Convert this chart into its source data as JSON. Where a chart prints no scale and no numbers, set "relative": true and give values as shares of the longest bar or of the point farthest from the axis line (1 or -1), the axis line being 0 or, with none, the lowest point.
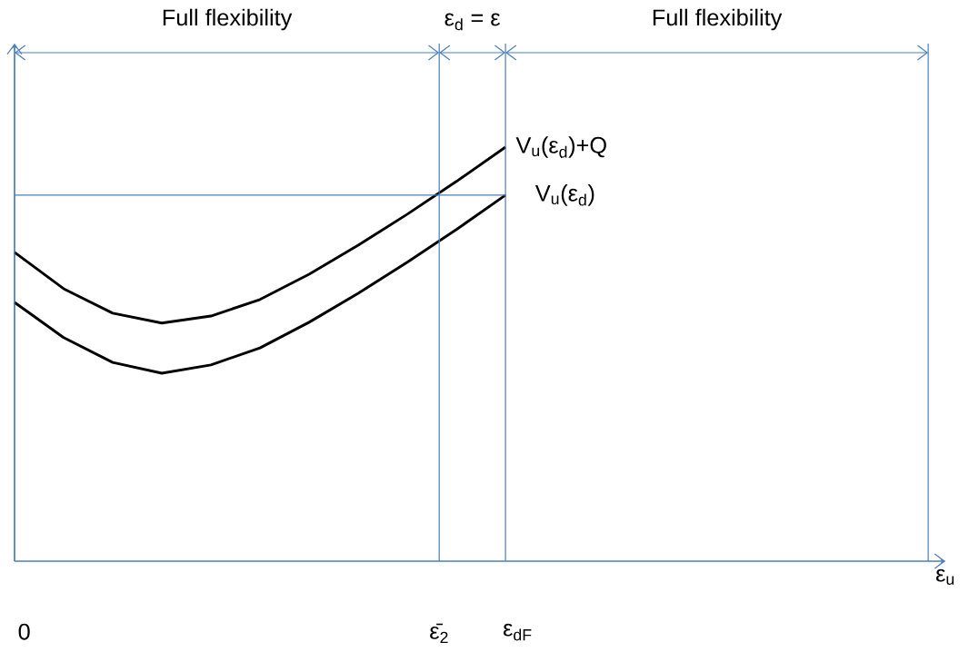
{
  "chart_data": {
    "type": "line",
    "relative": true,
    "categories": [
      null,
      null,
      null,
      null,
      null,
      null,
      null,
      null,
      null,
      null,
      null,
      null,
      null,
      null,
      null,
      null,
      null,
      null,
      null
    ],
    "series": [
      {
        "name": "V$_{u}$(ε$_{d}$)+Q",
        "color": "#000000",
        "values": [
          0.746,
          0.658,
          0.599,
          0.575,
          0.592,
          0.632,
          0.693,
          0.763,
          0.838,
          0.917,
          1,
          null,
          null,
          null,
          null,
          null,
          null,
          null,
          null
        ]
      },
      {
        "name": "V$_{u}$(ε$_{d}$)",
        "color": "#000000",
        "values": [
          0.625,
          0.54,
          0.48,
          0.454,
          0.474,
          0.515,
          0.577,
          0.647,
          0.722,
          0.801,
          0.884,
          null,
          null,
          null,
          null,
          null,
          null,
          null,
          null
        ]
      }
    ],
    "xlabel": "ε$_{u}$",
    "annotations": [
      "0",
      "ε̄$_{2}$",
      "ε$_{dF}$",
      "Full flexibility",
      "ε$_{d}$ = ε",
      "Full flexibility"
    ],
    "ref_lines": [
      {
        "axis": "y",
        "value": 0.884,
        "color": "#4a7ebb"
      }
    ]
  }
}
